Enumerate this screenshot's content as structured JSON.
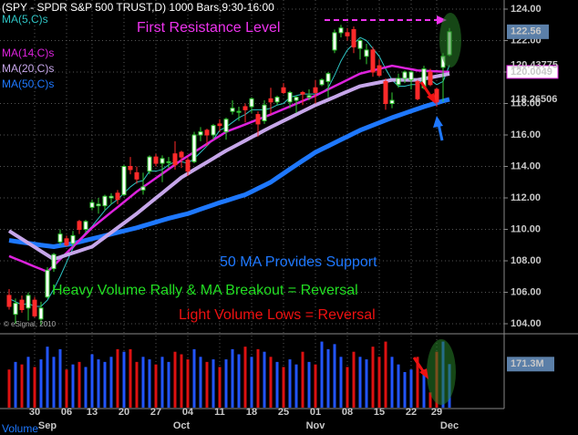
{
  "chart_data": {
    "type": "candlestick",
    "title": "(SPY - SPDR S&P 500 TRUST,D) 1000 Bars,9:30-16:00",
    "copyright": "© eSignal, 2010",
    "categories": [
      null,
      null,
      null,
      null,
      "30",
      null,
      null,
      null,
      null,
      "06",
      null,
      null,
      null,
      "13",
      null,
      null,
      null,
      null,
      "20",
      null,
      null,
      null,
      null,
      "27",
      null,
      null,
      null,
      null,
      "04",
      null,
      null,
      null,
      null,
      "11",
      null,
      null,
      null,
      null,
      "18",
      null,
      null,
      null,
      null,
      "25",
      null,
      null,
      null,
      null,
      "01",
      null,
      null,
      null,
      null,
      "08",
      null,
      null,
      null,
      null,
      "15",
      null,
      null,
      null,
      null,
      "22",
      null,
      null,
      null,
      "29",
      null,
      null
    ],
    "months": [
      null,
      null,
      null,
      null,
      null,
      null,
      "Sep",
      null,
      null,
      null,
      null,
      null,
      null,
      null,
      null,
      null,
      null,
      null,
      null,
      null,
      null,
      null,
      null,
      null,
      null,
      null,
      null,
      "Oct",
      null,
      null,
      null,
      null,
      null,
      null,
      null,
      null,
      null,
      null,
      null,
      null,
      null,
      null,
      null,
      null,
      null,
      null,
      null,
      null,
      "Nov",
      null,
      null,
      null,
      null,
      null,
      null,
      null,
      null,
      null,
      null,
      null,
      null,
      null,
      null,
      null,
      null,
      null,
      null,
      null,
      null,
      "Dec"
    ],
    "open": [
      105.8,
      104.6,
      105.5,
      105.0,
      105.5,
      104.3,
      105.7,
      107.5,
      109.2,
      109.4,
      109.1,
      110.5,
      110.0,
      111.4,
      111.5,
      111.5,
      112.0,
      112.3,
      112.2,
      114.0,
      113.6,
      112.5,
      113.7,
      114.6,
      114.2,
      114.3,
      114.8,
      114.9,
      114.4,
      114.3,
      116.0,
      116.3,
      116.0,
      116.7,
      116.2,
      117.5,
      117.5,
      117.8,
      117.8,
      117.3,
      116.9,
      118.3,
      118.1,
      119.0,
      118.1,
      118.2,
      118.7,
      118.4,
      119.0,
      119.2,
      119.4,
      121.4,
      122.5,
      122.5,
      122.7,
      121.5,
      121.0,
      121.4,
      120.4,
      119.4,
      118.0,
      119.2,
      119.6,
      119.5,
      119.4,
      119.0,
      120.0,
      118.9,
      120.3,
      121.1
    ],
    "high": [
      106.2,
      105.6,
      105.8,
      106.0,
      105.7,
      105.4,
      107.6,
      108.5,
      110.0,
      109.6,
      109.9,
      110.6,
      110.6,
      111.9,
      112.0,
      112.2,
      112.3,
      112.5,
      114.1,
      114.6,
      114.0,
      113.6,
      114.7,
      114.8,
      114.7,
      114.6,
      115.6,
      115.0,
      114.6,
      116.2,
      116.5,
      116.4,
      116.7,
      117.0,
      117.1,
      118.2,
      117.8,
      118.0,
      118.4,
      117.5,
      118.2,
      119.0,
      118.5,
      119.3,
      118.8,
      118.5,
      118.8,
      118.9,
      119.5,
      119.6,
      120.0,
      122.7,
      123.0,
      122.8,
      122.9,
      122.1,
      121.8,
      121.6,
      120.8,
      119.6,
      118.7,
      119.9,
      120.1,
      120.1,
      119.5,
      120.4,
      120.2,
      119.0,
      121.2,
      122.8
    ],
    "low": [
      104.9,
      104.0,
      104.7,
      104.2,
      104.4,
      103.9,
      105.6,
      107.3,
      109.0,
      108.9,
      108.9,
      109.7,
      109.8,
      111.2,
      111.0,
      111.2,
      111.6,
      111.6,
      112.1,
      113.5,
      112.9,
      112.2,
      113.5,
      114.0,
      113.0,
      113.9,
      113.8,
      113.9,
      113.4,
      114.2,
      115.6,
      115.3,
      115.7,
      116.2,
      115.7,
      117.3,
      116.9,
      116.8,
      117.4,
      115.9,
      116.7,
      117.3,
      117.9,
      118.6,
      117.7,
      117.4,
      117.9,
      118.2,
      118.0,
      119.1,
      118.4,
      121.2,
      122.2,
      122.0,
      121.2,
      120.8,
      120.5,
      119.7,
      119.7,
      117.6,
      117.7,
      119.0,
      119.3,
      118.9,
      118.2,
      118.9,
      119.1,
      117.8,
      118.1,
      121.0
    ],
    "close": [
      105.1,
      105.3,
      104.9,
      105.8,
      104.5,
      105.0,
      107.4,
      108.4,
      109.7,
      109.0,
      109.6,
      110.0,
      110.5,
      111.7,
      111.6,
      112.1,
      112.1,
      111.9,
      114.0,
      113.8,
      113.2,
      112.7,
      114.6,
      114.2,
      114.5,
      114.3,
      114.1,
      114.6,
      113.7,
      116.0,
      116.2,
      116.0,
      116.6,
      116.6,
      117.0,
      117.7,
      117.5,
      117.6,
      118.3,
      116.7,
      117.9,
      118.1,
      118.4,
      118.7,
      118.7,
      118.4,
      118.6,
      118.5,
      118.7,
      119.5,
      119.9,
      122.5,
      122.8,
      122.3,
      121.6,
      122.0,
      121.4,
      120.0,
      119.8,
      118.0,
      118.2,
      119.6,
      120.0,
      120.0,
      118.3,
      120.2,
      119.2,
      118.1,
      121.0,
      122.56
    ],
    "up_color": "#33cc33",
    "down_color": "#ff2a2a",
    "last_color": "#5b7fa8",
    "series": [
      {
        "name": "MA(20,C)s",
        "color": "#c6a6ea",
        "values": [
          109.9,
          109.64,
          109.39,
          109.13,
          108.87,
          108.61,
          108.36,
          108.1,
          108.23,
          108.37,
          108.5,
          108.63,
          108.77,
          108.9,
          109.2,
          109.5,
          109.8,
          110.1,
          110.4,
          110.7,
          111.0,
          111.33,
          111.66,
          111.99,
          112.31,
          112.64,
          112.97,
          113.3,
          113.54,
          113.79,
          114.03,
          114.27,
          114.51,
          114.76,
          115.0,
          115.21,
          115.43,
          115.64,
          115.86,
          116.07,
          116.29,
          116.5,
          116.7,
          116.9,
          117.1,
          117.3,
          117.5,
          117.7,
          117.9,
          118.07,
          118.24,
          118.41,
          118.59,
          118.76,
          118.93,
          119.1,
          119.18,
          119.26,
          119.34,
          119.42,
          119.5,
          119.5,
          119.5,
          119.5,
          119.5,
          119.58,
          119.65,
          119.73,
          119.81,
          119.8864
        ]
      },
      {
        "name": "MA(14,C)s",
        "color": "#dd22dd",
        "values": [
          108.3,
          108.13,
          107.97,
          107.8,
          107.63,
          107.47,
          107.3,
          107.7,
          108.1,
          108.5,
          108.9,
          109.3,
          109.7,
          110.1,
          110.43,
          110.76,
          111.09,
          111.41,
          111.74,
          112.07,
          112.4,
          112.69,
          112.97,
          113.26,
          113.54,
          113.83,
          114.11,
          114.4,
          114.66,
          114.91,
          115.17,
          115.43,
          115.69,
          115.94,
          116.2,
          116.36,
          116.51,
          116.67,
          116.83,
          116.99,
          117.14,
          117.3,
          117.47,
          117.64,
          117.81,
          117.99,
          118.16,
          118.33,
          118.5,
          118.7,
          118.9,
          119.1,
          119.3,
          119.5,
          119.7,
          119.9,
          120.0,
          120.1,
          120.2,
          120.3,
          120.4,
          120.33,
          120.25,
          120.18,
          120.1,
          120.08,
          120.06,
          120.04,
          120.02,
          120.0049
        ]
      },
      {
        "name": "MA(5,C)s",
        "color": "#2ec4c4",
        "values": [
          105.6,
          105.4,
          105.2,
          105.3,
          105.1,
          105.1,
          105.5,
          106.2,
          107.0,
          107.9,
          108.8,
          109.3,
          109.8,
          110.2,
          110.7,
          111.2,
          111.6,
          111.9,
          112.3,
          112.7,
          113.0,
          113.1,
          113.7,
          113.7,
          113.8,
          114.1,
          114.3,
          114.3,
          114.2,
          114.5,
          114.9,
          115.3,
          115.7,
          116.3,
          116.5,
          116.8,
          117.1,
          117.3,
          117.6,
          117.6,
          117.6,
          117.7,
          117.9,
          118.0,
          118.4,
          118.5,
          118.6,
          118.6,
          118.6,
          118.7,
          119.0,
          119.8,
          120.7,
          121.4,
          121.8,
          122.2,
          122.0,
          121.5,
          121.0,
          120.2,
          119.5,
          119.1,
          119.1,
          119.2,
          119.2,
          119.6,
          119.5,
          119.2,
          119.4,
          120.43775
        ]
      },
      {
        "name": "MA(50,C)s",
        "color": "#1e78ff",
        "values": [
          109.3,
          109.24,
          109.18,
          109.12,
          109.06,
          109.0,
          108.95,
          108.9,
          108.97,
          109.03,
          109.1,
          109.2,
          109.3,
          109.4,
          109.5,
          109.6,
          109.7,
          109.8,
          109.9,
          110.0,
          110.1,
          110.22,
          110.34,
          110.46,
          110.58,
          110.7,
          110.8,
          110.9,
          111.0,
          111.14,
          111.28,
          111.42,
          111.56,
          111.7,
          111.82,
          111.95,
          112.08,
          112.2,
          112.4,
          112.6,
          112.8,
          113.0,
          113.28,
          113.55,
          113.83,
          114.1,
          114.37,
          114.63,
          114.9,
          115.1,
          115.3,
          115.5,
          115.7,
          115.9,
          116.1,
          116.3,
          116.46,
          116.62,
          116.78,
          116.94,
          117.1,
          117.24,
          117.38,
          117.52,
          117.66,
          117.8,
          117.92,
          118.04,
          118.16,
          118.26506
        ]
      }
    ],
    "legend_order": [
      2,
      1,
      0,
      3
    ],
    "ylim": [
      104,
      124
    ],
    "yticks": [
      {
        "value": 104,
        "label": "104.00"
      },
      {
        "value": 106,
        "label": "106.00"
      },
      {
        "value": 108,
        "label": "108.00"
      },
      {
        "value": 110,
        "label": "110.00"
      },
      {
        "value": 112,
        "label": "112.00"
      },
      {
        "value": 114,
        "label": "114.00"
      },
      {
        "value": 116,
        "label": "116.00"
      },
      {
        "value": 118,
        "label": "118.00"
      },
      {
        "value": 120,
        "label": "120.00"
      },
      {
        "value": 122,
        "label": "122.00"
      },
      {
        "value": 124,
        "label": "124.00"
      }
    ],
    "grid": true,
    "annotations": [
      "First Resistance Level",
      "50 MA Provides Support",
      "Heavy Volume Rally & MA Breakout = Reversal",
      "Light Volume Lows = Reversal"
    ],
    "volume": {
      "label": "Volume",
      "up_color": "#2255ff",
      "down_color": "#dd1111",
      "ylim": [
        0,
        280
      ],
      "last_value_label": "171.3M",
      "values": [
        150,
        180,
        170,
        200,
        160,
        190,
        240,
        200,
        230,
        150,
        170,
        180,
        160,
        210,
        190,
        180,
        200,
        230,
        220,
        230,
        180,
        200,
        190,
        170,
        200,
        180,
        220,
        210,
        190,
        230,
        200,
        180,
        190,
        160,
        190,
        230,
        210,
        240,
        200,
        230,
        220,
        200,
        180,
        160,
        190,
        170,
        220,
        180,
        170,
        260,
        230,
        250,
        200,
        160,
        220,
        200,
        190,
        240,
        200,
        260,
        200,
        170,
        140,
        150,
        200,
        150,
        60,
        220,
        260,
        171.3
      ]
    }
  }
}
